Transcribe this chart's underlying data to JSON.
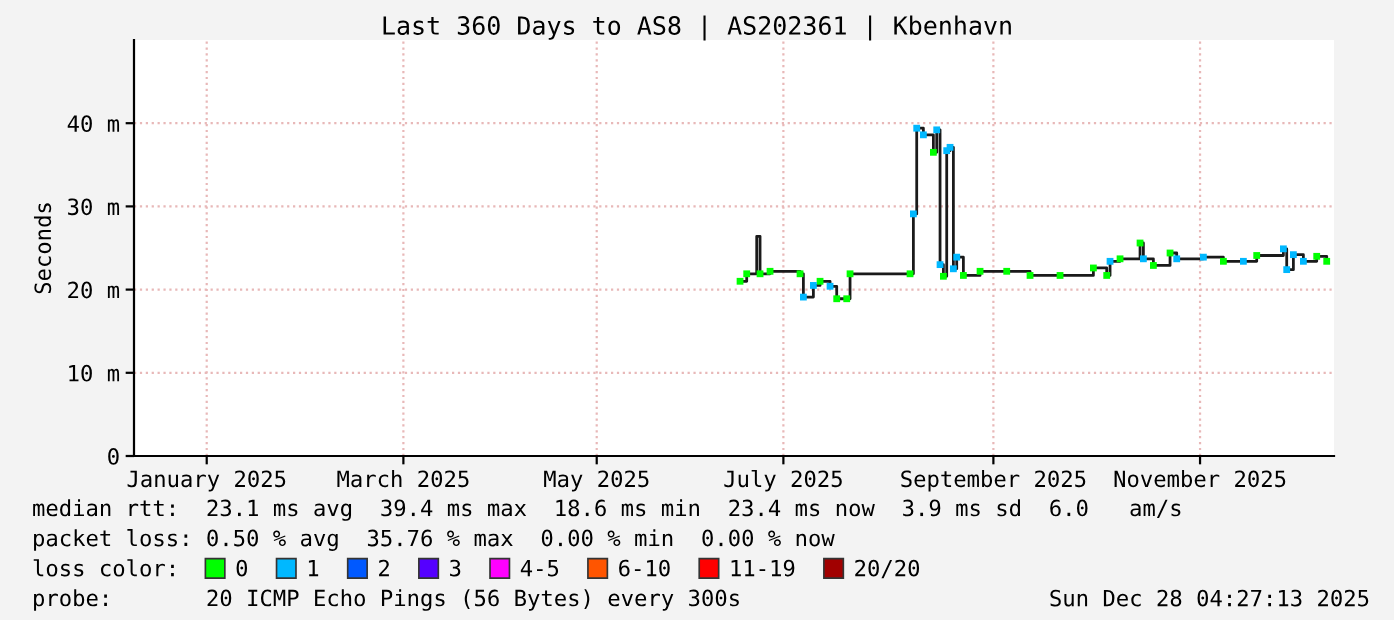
{
  "chart_data": {
    "type": "scatter",
    "title": "Last 360 Days to AS8 | AS202361 | Kbenhavn",
    "ylabel": "Seconds",
    "x": [
      "2025-07-03",
      "2025-07-05",
      "2025-07-08",
      "2025-07-09",
      "2025-07-12",
      "2025-07-21",
      "2025-07-22",
      "2025-07-25",
      "2025-07-27",
      "2025-07-30",
      "2025-08-01",
      "2025-08-04",
      "2025-08-05",
      "2025-08-23",
      "2025-08-24",
      "2025-08-25",
      "2025-08-27",
      "2025-08-30",
      "2025-08-31",
      "2025-09-01",
      "2025-09-02",
      "2025-09-03",
      "2025-09-04",
      "2025-09-05",
      "2025-09-06",
      "2025-09-08",
      "2025-09-13",
      "2025-09-21",
      "2025-09-28",
      "2025-10-07",
      "2025-10-17",
      "2025-10-21",
      "2025-10-22",
      "2025-10-25",
      "2025-10-31",
      "2025-11-01",
      "2025-11-04",
      "2025-11-09",
      "2025-11-11",
      "2025-11-19",
      "2025-11-25",
      "2025-12-01",
      "2025-12-05",
      "2025-12-13",
      "2025-12-14",
      "2025-12-16",
      "2025-12-19",
      "2025-12-23",
      "2025-12-26"
    ],
    "series": [
      {
        "type": "step",
        "marker": "none",
        "color": "#1a1a1a",
        "values": [
          21.0,
          21.9,
          26.4,
          21.9,
          22.2,
          21.9,
          19.1,
          20.5,
          21.0,
          20.4,
          18.9,
          18.9,
          21.9,
          21.9,
          29.1,
          39.4,
          38.6,
          36.5,
          39.2,
          23.0,
          21.6,
          36.7,
          37.1,
          22.5,
          23.9,
          21.7,
          22.2,
          22.2,
          21.7,
          21.7,
          22.6,
          21.7,
          23.4,
          23.7,
          25.6,
          23.7,
          22.9,
          24.4,
          23.7,
          23.9,
          23.4,
          23.4,
          24.1,
          24.9,
          22.4,
          24.2,
          23.4,
          24.0,
          23.4
        ]
      },
      {
        "name": "0",
        "color": "#00ff00",
        "values": [
          21.0,
          21.9,
          null,
          21.9,
          22.2,
          21.9,
          null,
          null,
          21.0,
          null,
          18.9,
          18.9,
          21.9,
          21.9,
          null,
          null,
          null,
          36.5,
          null,
          null,
          21.6,
          null,
          null,
          null,
          null,
          21.7,
          22.2,
          22.2,
          21.7,
          21.7,
          22.6,
          21.7,
          null,
          23.7,
          25.6,
          null,
          22.9,
          24.4,
          null,
          null,
          23.4,
          null,
          24.1,
          null,
          null,
          null,
          null,
          24.0,
          23.4
        ]
      },
      {
        "name": "1",
        "color": "#00b8ff",
        "values": [
          null,
          null,
          null,
          null,
          null,
          null,
          19.1,
          20.5,
          null,
          20.4,
          null,
          null,
          null,
          null,
          29.1,
          39.4,
          38.6,
          null,
          39.2,
          23.0,
          null,
          36.7,
          37.1,
          22.5,
          23.9,
          null,
          null,
          null,
          null,
          null,
          null,
          null,
          23.4,
          null,
          null,
          23.7,
          null,
          null,
          23.7,
          23.9,
          null,
          23.4,
          null,
          24.9,
          22.4,
          24.2,
          23.4,
          null,
          null
        ]
      },
      {
        "name": "2",
        "color": "#0059ff",
        "values": [
          null,
          null,
          null,
          null,
          null,
          null,
          null,
          null,
          null,
          null,
          null,
          null,
          null,
          null,
          null,
          null,
          null,
          null,
          null,
          null,
          null,
          null,
          null,
          null,
          null,
          null,
          null,
          null,
          null,
          null,
          null,
          null,
          null,
          null,
          null,
          null,
          null,
          null,
          null,
          null,
          null,
          null,
          null,
          null,
          null,
          null,
          null,
          null,
          null
        ]
      },
      {
        "name": "3",
        "color": "#5500ff",
        "values": [
          null,
          null,
          null,
          null,
          null,
          null,
          null,
          null,
          null,
          null,
          null,
          null,
          null,
          null,
          null,
          null,
          null,
          null,
          null,
          null,
          null,
          null,
          null,
          null,
          null,
          null,
          null,
          null,
          null,
          null,
          null,
          null,
          null,
          null,
          null,
          null,
          null,
          null,
          null,
          null,
          null,
          null,
          null,
          null,
          null,
          null,
          null,
          null,
          null
        ]
      },
      {
        "name": "4-5",
        "color": "#ff00ff",
        "values": [
          null,
          null,
          null,
          null,
          null,
          null,
          null,
          null,
          null,
          null,
          null,
          null,
          null,
          null,
          null,
          null,
          null,
          null,
          null,
          null,
          null,
          null,
          null,
          null,
          null,
          null,
          null,
          null,
          null,
          null,
          null,
          null,
          null,
          null,
          null,
          null,
          null,
          null,
          null,
          null,
          null,
          null,
          null,
          null,
          null,
          null,
          null,
          null,
          null
        ]
      },
      {
        "name": "6-10",
        "color": "#ff5500",
        "values": [
          null,
          null,
          null,
          null,
          null,
          null,
          null,
          null,
          null,
          null,
          null,
          null,
          null,
          null,
          null,
          null,
          null,
          null,
          null,
          null,
          null,
          null,
          null,
          null,
          null,
          null,
          null,
          null,
          null,
          null,
          null,
          null,
          null,
          null,
          null,
          null,
          null,
          null,
          null,
          null,
          null,
          null,
          null,
          null,
          null,
          null,
          null,
          null,
          null
        ]
      },
      {
        "name": "11-19",
        "color": "#ff0000",
        "values": [
          null,
          null,
          null,
          null,
          null,
          null,
          null,
          null,
          null,
          null,
          null,
          null,
          null,
          null,
          null,
          null,
          null,
          null,
          null,
          null,
          null,
          null,
          null,
          null,
          null,
          null,
          null,
          null,
          null,
          null,
          null,
          null,
          null,
          null,
          null,
          null,
          null,
          null,
          null,
          null,
          null,
          null,
          null,
          null,
          null,
          null,
          null,
          null,
          null
        ]
      },
      {
        "name": "20/20",
        "color": "#a10000",
        "values": [
          null,
          null,
          null,
          null,
          null,
          null,
          null,
          null,
          null,
          null,
          null,
          null,
          null,
          null,
          null,
          null,
          null,
          null,
          null,
          null,
          null,
          null,
          null,
          null,
          null,
          null,
          null,
          null,
          null,
          null,
          null,
          null,
          null,
          null,
          null,
          null,
          null,
          null,
          null,
          null,
          null,
          null,
          null,
          null,
          null,
          null,
          null,
          null,
          null
        ]
      }
    ],
    "legend_title": "loss color:",
    "legend": "bottom",
    "marker": "square",
    "grid": true,
    "xlim": [
      "2025-01-02T04:27",
      "2025-12-28T04:27"
    ],
    "xticks": [
      {
        "value": "2025-01-24",
        "label": "January 2025"
      },
      {
        "value": "2025-03-24",
        "label": "March 2025"
      },
      {
        "value": "2025-05-21",
        "label": "May 2025"
      },
      {
        "value": "2025-07-16",
        "label": "July 2025"
      },
      {
        "value": "2025-09-17",
        "label": "September 2025"
      },
      {
        "value": "2025-11-18",
        "label": "November 2025"
      }
    ],
    "ylim": [
      0,
      50
    ],
    "yticks": [
      0,
      {
        "value": 10,
        "label": "10 m"
      },
      {
        "value": 20,
        "label": "20 m"
      },
      {
        "value": 30,
        "label": "30 m"
      },
      {
        "value": 40,
        "label": "40 m"
      }
    ],
    "annotations": [
      "median rtt:  23.1 ms avg  39.4 ms max  18.6 ms min  23.4 ms now  3.9 ms sd  6.0   am/s",
      "packet loss: 0.50 % avg  35.76 % max  0.00 % min  0.00 % now",
      "probe:       20 ICMP Echo Pings (56 Bytes) every 300s",
      "Sun Dec 28 04:27:13 2025"
    ]
  }
}
